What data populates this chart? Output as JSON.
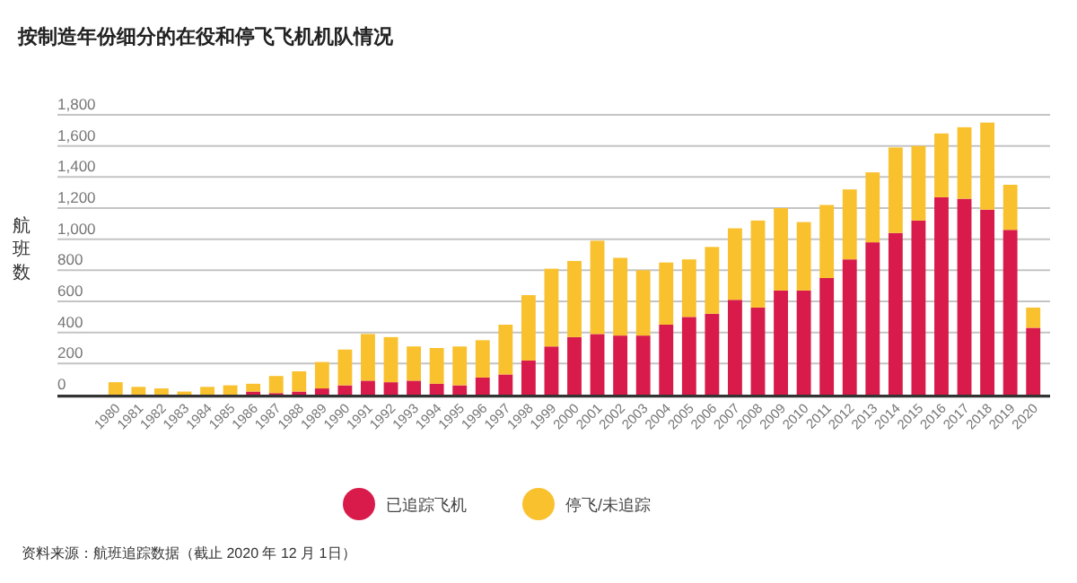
{
  "chart_data": {
    "type": "bar",
    "stacked": true,
    "title": "按制造年份细分的在役和停飞飞机机队情况",
    "ylabel": "航班数",
    "categories": [
      "1980",
      "1981",
      "1982",
      "1983",
      "1984",
      "1985",
      "1986",
      "1987",
      "1988",
      "1989",
      "1990",
      "1991",
      "1992",
      "1993",
      "1994",
      "1995",
      "1996",
      "1997",
      "1998",
      "1999",
      "2000",
      "2001",
      "2002",
      "2003",
      "2004",
      "2005",
      "2006",
      "2007",
      "2008",
      "2009",
      "2010",
      "2011",
      "2012",
      "2013",
      "2014",
      "2015",
      "2016",
      "2017",
      "2018",
      "2019",
      "2020"
    ],
    "series": [
      {
        "name": "已追踪飞机",
        "color": "#d81b4a",
        "values": [
          0,
          0,
          0,
          0,
          0,
          0,
          20,
          10,
          20,
          40,
          60,
          90,
          80,
          90,
          70,
          60,
          110,
          130,
          220,
          310,
          370,
          390,
          380,
          380,
          450,
          500,
          520,
          610,
          560,
          670,
          670,
          750,
          870,
          980,
          1040,
          1120,
          1270,
          1260,
          1190,
          1060,
          430
        ]
      },
      {
        "name": "停飞/未追踪",
        "color": "#f9c12e",
        "values": [
          80,
          50,
          40,
          20,
          50,
          60,
          50,
          110,
          130,
          170,
          230,
          300,
          290,
          220,
          230,
          250,
          240,
          320,
          420,
          500,
          490,
          600,
          500,
          420,
          400,
          370,
          430,
          460,
          560,
          530,
          440,
          470,
          450,
          450,
          550,
          480,
          410,
          460,
          560,
          290,
          130
        ]
      }
    ],
    "ylim": [
      0,
      1800
    ],
    "yticks": [
      0,
      {
        "value": 200,
        "label": "200"
      },
      {
        "value": 400,
        "label": "400"
      },
      {
        "value": 600,
        "label": "600"
      },
      {
        "value": 800,
        "label": "800"
      },
      {
        "value": 1000,
        "label": "1,000"
      },
      {
        "value": 1200,
        "label": "1,200"
      },
      {
        "value": 1400,
        "label": "1,400"
      },
      {
        "value": 1600,
        "label": "1,600"
      },
      {
        "value": 1800,
        "label": "1,800"
      }
    ],
    "grid": "y",
    "legend": "bottom",
    "marker": "circle",
    "annotations": [
      "资料来源：航班追踪数据（截止 2020 年 12 月 1日）"
    ]
  }
}
